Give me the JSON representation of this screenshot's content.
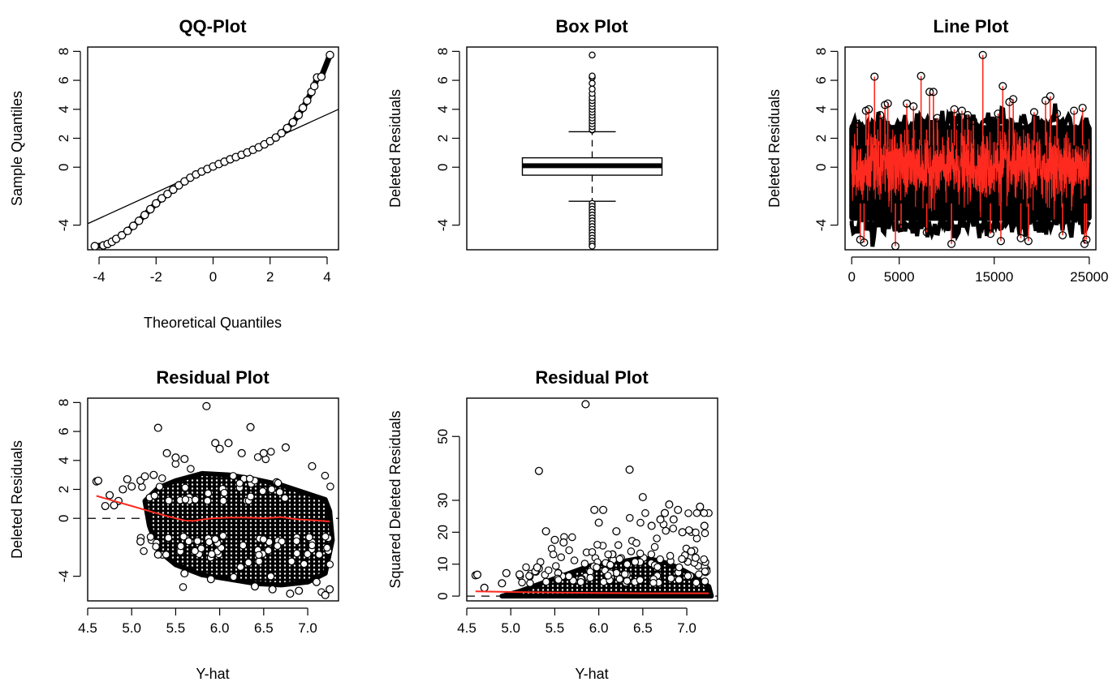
{
  "chart_data": [
    {
      "type": "scatter",
      "title": "QQ-Plot",
      "xlabel": "Theoretical Quantiles",
      "ylabel": "Sample Quantiles",
      "xlim": [
        -4.4,
        4.4
      ],
      "ylim": [
        -5.7,
        8.3
      ],
      "xticks": [
        -4,
        -2,
        0,
        2,
        4
      ],
      "yticks": [
        -4,
        0,
        2,
        4,
        6,
        8
      ],
      "reference_line": {
        "x": [
          -4.4,
          4.4
        ],
        "y": [
          -3.9,
          4.0
        ]
      },
      "points": [
        [
          -4.15,
          -5.45
        ],
        [
          -3.85,
          -5.4
        ],
        [
          -3.7,
          -5.3
        ],
        [
          -3.55,
          -5.15
        ],
        [
          -3.4,
          -4.95
        ],
        [
          -3.2,
          -4.7
        ],
        [
          -3.0,
          -4.4
        ],
        [
          -2.8,
          -4.05
        ],
        [
          -2.6,
          -3.7
        ],
        [
          -2.4,
          -3.3
        ],
        [
          -2.2,
          -2.9
        ],
        [
          -2.0,
          -2.5
        ],
        [
          -1.8,
          -2.15
        ],
        [
          -1.6,
          -1.85
        ],
        [
          -1.4,
          -1.55
        ],
        [
          -1.2,
          -1.25
        ],
        [
          -1.0,
          -0.98
        ],
        [
          -0.8,
          -0.72
        ],
        [
          -0.6,
          -0.5
        ],
        [
          -0.4,
          -0.3
        ],
        [
          -0.2,
          -0.12
        ],
        [
          0.0,
          0.05
        ],
        [
          0.2,
          0.22
        ],
        [
          0.4,
          0.38
        ],
        [
          0.6,
          0.55
        ],
        [
          0.8,
          0.7
        ],
        [
          1.0,
          0.86
        ],
        [
          1.2,
          1.02
        ],
        [
          1.4,
          1.2
        ],
        [
          1.6,
          1.38
        ],
        [
          1.8,
          1.58
        ],
        [
          2.0,
          1.8
        ],
        [
          2.2,
          2.05
        ],
        [
          2.4,
          2.35
        ],
        [
          2.6,
          2.7
        ],
        [
          2.8,
          3.1
        ],
        [
          3.0,
          3.6
        ],
        [
          3.15,
          4.1
        ],
        [
          3.3,
          4.6
        ],
        [
          3.45,
          5.2
        ],
        [
          3.55,
          5.6
        ],
        [
          3.65,
          6.2
        ],
        [
          3.8,
          6.25
        ],
        [
          4.1,
          7.75
        ]
      ]
    },
    {
      "type": "box",
      "title": "Box Plot",
      "ylabel": "Deleted Residuals",
      "ylim": [
        -5.7,
        8.3
      ],
      "yticks": [
        -4,
        0,
        2,
        4,
        6,
        8
      ],
      "whisker_low": -2.35,
      "q1": -0.55,
      "median": 0.1,
      "q3": 0.65,
      "whisker_high": 2.45,
      "outliers": [
        2.6,
        2.8,
        3.0,
        3.2,
        3.4,
        3.6,
        3.8,
        4.0,
        4.2,
        4.4,
        4.6,
        4.8,
        5.1,
        5.4,
        5.8,
        6.2,
        6.3,
        7.75,
        -2.5,
        -2.7,
        -2.9,
        -3.1,
        -3.3,
        -3.5,
        -3.7,
        -3.9,
        -4.1,
        -4.3,
        -4.5,
        -4.7,
        -4.9,
        -5.1,
        -5.3,
        -5.45
      ]
    },
    {
      "type": "line",
      "title": "Line Plot",
      "ylabel": "Deleted Residuals",
      "xlim": [
        -700,
        25700
      ],
      "ylim": [
        -5.7,
        8.3
      ],
      "xticks": [
        0,
        5000,
        15000,
        25000
      ],
      "yticks": [
        -4,
        0,
        2,
        4,
        6,
        8
      ],
      "n_obs": 25000,
      "line_color": "#ff2a1f",
      "marker_color": "#000000",
      "extreme_points": [
        [
          600,
          3.0
        ],
        [
          900,
          -5.0
        ],
        [
          1300,
          -5.2
        ],
        [
          1500,
          3.9
        ],
        [
          1800,
          4.0
        ],
        [
          2400,
          6.25
        ],
        [
          3000,
          3.6
        ],
        [
          3500,
          4.3
        ],
        [
          3800,
          4.4
        ],
        [
          4600,
          -5.45
        ],
        [
          5200,
          -4.2
        ],
        [
          5800,
          4.4
        ],
        [
          6500,
          4.2
        ],
        [
          7300,
          6.3
        ],
        [
          7900,
          -4.5
        ],
        [
          8200,
          5.2
        ],
        [
          8600,
          5.2
        ],
        [
          9000,
          3.4
        ],
        [
          10500,
          -5.3
        ],
        [
          10800,
          4.0
        ],
        [
          11600,
          3.9
        ],
        [
          12200,
          3.6
        ],
        [
          12800,
          3.2
        ],
        [
          13800,
          7.75
        ],
        [
          14600,
          -4.6
        ],
        [
          15400,
          3.7
        ],
        [
          15900,
          5.6
        ],
        [
          15700,
          -5.1
        ],
        [
          16600,
          4.5
        ],
        [
          17000,
          4.7
        ],
        [
          17800,
          -4.9
        ],
        [
          18600,
          -5.1
        ],
        [
          19200,
          3.8
        ],
        [
          20400,
          4.6
        ],
        [
          20900,
          4.9
        ],
        [
          21600,
          3.7
        ],
        [
          22200,
          -4.7
        ],
        [
          23400,
          3.9
        ],
        [
          24300,
          4.1
        ],
        [
          24500,
          -5.3
        ],
        [
          24700,
          -5.0
        ]
      ]
    },
    {
      "type": "scatter",
      "title": "Residual Plot",
      "xlabel": "Y-hat",
      "ylabel": "Deleted Residuals",
      "xlim": [
        4.5,
        7.35
      ],
      "ylim": [
        -5.7,
        8.3
      ],
      "xticks": [
        4.5,
        5.0,
        5.5,
        6.0,
        6.5,
        7.0
      ],
      "yticks": [
        -4,
        0,
        2,
        4,
        6,
        8
      ],
      "reference_hline": 0,
      "smooth_color": "#ff2a1f",
      "smooth": [
        [
          4.6,
          1.55
        ],
        [
          4.8,
          1.2
        ],
        [
          5.0,
          0.85
        ],
        [
          5.2,
          0.5
        ],
        [
          5.4,
          0.15
        ],
        [
          5.6,
          -0.15
        ],
        [
          5.7,
          -0.18
        ],
        [
          5.9,
          0.0
        ],
        [
          6.1,
          0.05
        ],
        [
          6.3,
          0.05
        ],
        [
          6.5,
          0.02
        ],
        [
          6.7,
          0.08
        ],
        [
          6.9,
          -0.08
        ],
        [
          7.1,
          -0.15
        ],
        [
          7.25,
          -0.22
        ]
      ],
      "outliers": [
        [
          4.6,
          2.55
        ],
        [
          4.62,
          2.6
        ],
        [
          4.75,
          1.6
        ],
        [
          4.85,
          1.2
        ],
        [
          4.9,
          2.0
        ],
        [
          4.95,
          2.7
        ],
        [
          5.0,
          2.2
        ],
        [
          5.1,
          2.6
        ],
        [
          5.15,
          2.9
        ],
        [
          5.25,
          3.0
        ],
        [
          5.3,
          6.25
        ],
        [
          5.4,
          4.5
        ],
        [
          5.5,
          4.2
        ],
        [
          5.6,
          4.1
        ],
        [
          5.85,
          7.75
        ],
        [
          5.95,
          5.2
        ],
        [
          6.0,
          4.8
        ],
        [
          6.1,
          5.2
        ],
        [
          6.25,
          4.5
        ],
        [
          6.35,
          6.3
        ],
        [
          6.5,
          4.5
        ],
        [
          6.75,
          4.9
        ],
        [
          7.05,
          3.6
        ],
        [
          6.8,
          -5.2
        ],
        [
          7.2,
          -5.3
        ],
        [
          7.25,
          -4.9
        ],
        [
          6.9,
          -5.0
        ],
        [
          7.1,
          -4.4
        ],
        [
          6.6,
          -4.9
        ],
        [
          6.4,
          -4.7
        ],
        [
          5.9,
          -4.2
        ],
        [
          5.6,
          -3.8
        ],
        [
          5.3,
          -2.5
        ],
        [
          5.1,
          -1.6
        ],
        [
          4.8,
          0.9
        ],
        [
          4.7,
          0.85
        ]
      ]
    },
    {
      "type": "scatter",
      "title": "Residual Plot",
      "xlabel": "Y-hat",
      "ylabel": "Squared Deleted Residuals",
      "xlim": [
        4.5,
        7.35
      ],
      "ylim": [
        -1.5,
        62
      ],
      "xticks": [
        4.5,
        5.0,
        5.5,
        6.0,
        6.5,
        7.0
      ],
      "yticks": [
        0,
        10,
        20,
        30,
        50
      ],
      "reference_hline": 0,
      "smooth_color": "#ff2a1f",
      "smooth": [
        [
          4.6,
          1.5
        ],
        [
          5.0,
          1.3
        ],
        [
          5.5,
          1.1
        ],
        [
          6.0,
          1.0
        ],
        [
          6.5,
          0.9
        ],
        [
          7.0,
          0.9
        ],
        [
          7.25,
          0.9
        ]
      ],
      "outliers": [
        [
          4.6,
          6.5
        ],
        [
          4.62,
          6.7
        ],
        [
          4.7,
          2.6
        ],
        [
          4.9,
          4.0
        ],
        [
          4.95,
          7.2
        ],
        [
          5.1,
          6.8
        ],
        [
          5.3,
          9.0
        ],
        [
          5.32,
          39.2
        ],
        [
          5.4,
          20.3
        ],
        [
          5.5,
          17.6
        ],
        [
          5.6,
          16.8
        ],
        [
          5.85,
          60.1
        ],
        [
          5.95,
          27.0
        ],
        [
          6.0,
          23.0
        ],
        [
          6.05,
          27.0
        ],
        [
          6.2,
          20.3
        ],
        [
          6.35,
          39.6
        ],
        [
          6.5,
          31.0
        ],
        [
          6.6,
          22.0
        ],
        [
          6.7,
          24.0
        ],
        [
          6.75,
          26.0
        ],
        [
          6.8,
          28.7
        ],
        [
          6.85,
          24.0
        ],
        [
          6.9,
          27.0
        ],
        [
          6.95,
          20.0
        ],
        [
          7.05,
          14.0
        ],
        [
          7.15,
          28.0
        ],
        [
          7.2,
          22.0
        ],
        [
          7.1,
          12.0
        ]
      ]
    }
  ]
}
